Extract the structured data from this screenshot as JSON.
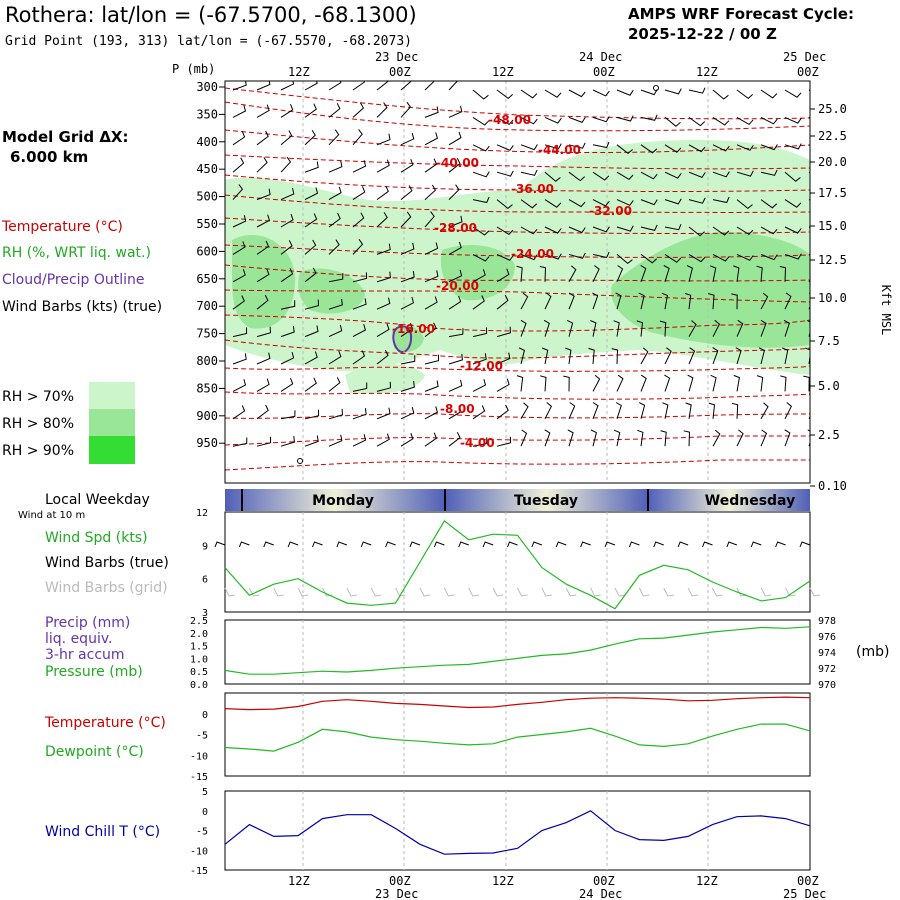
{
  "header": {
    "title": "Rothera:  lat/lon = (-67.5700, -68.1300)",
    "subtitle": "Grid Point (193, 313) lat/lon = (-67.5570, -68.2073)",
    "cycle_line1": "AMPS WRF Forecast Cycle:",
    "cycle_line2": "2025-12-22 / 00  Z"
  },
  "legend": {
    "model_grid_label": "Model Grid ΔX:",
    "model_grid_value": "6.000 km",
    "temperature": "Temperature (°C)",
    "rh": "RH (%, WRT liq. wat.)",
    "cloud": "Cloud/Precip Outline",
    "wind": "Wind Barbs (kts) (true)",
    "rh70": "RH > 70%",
    "rh80": "RH > 80%",
    "rh90": "RH > 90%",
    "weekday": "Local Weekday",
    "wind10": "Wind at 10 m",
    "wind_spd": "Wind Spd (kts)",
    "barbs_true": "Wind Barbs (true)",
    "barbs_grid": "Wind Barbs (grid)",
    "precip": "Precip (mm)",
    "liq": "liq. equiv.",
    "accum": "3-hr accum",
    "pressure": "Pressure (mb)",
    "pressure_unit": "(mb)",
    "temp2": "Temperature (°C)",
    "dewpoint": "Dewpoint (°C)",
    "windchill": "Wind Chill T (°C)"
  },
  "colors": {
    "rh70": "#ccf5cc",
    "rh80": "#99e699",
    "rh90": "#33dd33",
    "temp": "#cc0000",
    "green": "#22bb22",
    "purple": "#6633aa",
    "blue": "#0000aa"
  },
  "time_axis": {
    "top_dates": [
      "23 Dec",
      "24 Dec",
      "25 Dec"
    ],
    "top_hours": [
      "12Z",
      "00Z",
      "12Z",
      "00Z",
      "12Z",
      "00Z"
    ],
    "p_label": "P (mb)",
    "days": [
      "Monday",
      "Tuesday",
      "Wednesday"
    ]
  },
  "chart_data": [
    {
      "type": "contour",
      "name": "cross-section",
      "pressure_levels": [
        "300",
        "350",
        "400",
        "450",
        "500",
        "550",
        "600",
        "650",
        "700",
        "750",
        "800",
        "850",
        "900",
        "950"
      ],
      "height_ticks": [
        "25.0",
        "22.5",
        "20.0",
        "17.5",
        "15.0",
        "12.5",
        "10.0",
        "7.5",
        "5.0",
        "2.5",
        "0.10"
      ],
      "height_label": "Kft MSL",
      "temp_labels": [
        "-48.00",
        "-44.00",
        "-40.00",
        "-36.00",
        "-32.00",
        "-28.00",
        "-24.00",
        "-20.00",
        "-16.00",
        "-12.00",
        "-8.00",
        "-4.00"
      ]
    },
    {
      "type": "line",
      "name": "wind-speed",
      "yticks": [
        "12",
        "9",
        "6",
        "3"
      ],
      "ylim": [
        3,
        12
      ],
      "x_hours": [
        0,
        3,
        6,
        9,
        12,
        15,
        18,
        21,
        24,
        27,
        30,
        33,
        36,
        39,
        42,
        45,
        48,
        51,
        54,
        57,
        60,
        63,
        66,
        69,
        72
      ],
      "values": [
        7,
        4.5,
        5.5,
        6,
        4.8,
        3.8,
        3.6,
        3.8,
        7.5,
        11.2,
        9.5,
        10,
        9.9,
        7,
        5.5,
        4.5,
        3.3,
        6.3,
        7.2,
        6.8,
        5.7,
        4.8,
        4,
        4.3,
        5.8
      ]
    },
    {
      "type": "line",
      "name": "pressure",
      "yticks_left": [
        "2.5",
        "2.0",
        "1.5",
        "1.0",
        "0.5",
        "0.0"
      ],
      "yticks_right": [
        "978",
        "976",
        "974",
        "972",
        "970"
      ],
      "ylim": [
        970,
        978.5
      ],
      "values": [
        971.8,
        971.3,
        971.3,
        971.5,
        971.7,
        971.6,
        971.8,
        972.1,
        972.3,
        972.5,
        972.6,
        973,
        973.4,
        973.8,
        974,
        974.5,
        975.3,
        976,
        976.1,
        976.5,
        976.9,
        977.2,
        977.5,
        977.4,
        977.6
      ]
    },
    {
      "type": "line",
      "name": "temperature-dewpoint",
      "yticks": [
        "0",
        "-5",
        "-10",
        "-15"
      ],
      "ylim": [
        -15,
        1
      ],
      "series": [
        {
          "name": "Temperature",
          "values": [
            -2,
            -2.2,
            -2.1,
            -1.6,
            -0.6,
            -0.3,
            -0.6,
            -1,
            -1.2,
            -1.5,
            -1.8,
            -1.7,
            -1.2,
            -0.8,
            -0.3,
            0,
            0.1,
            0,
            -0.2,
            -0.5,
            -0.4,
            -0.1,
            0.1,
            0.2,
            0.1
          ]
        },
        {
          "name": "Dewpoint",
          "values": [
            -9.5,
            -9.8,
            -10.2,
            -8.5,
            -6,
            -6.5,
            -7.5,
            -8,
            -8.3,
            -8.7,
            -9,
            -8.8,
            -7.5,
            -7,
            -6.5,
            -5.8,
            -7.3,
            -9,
            -9.3,
            -8.8,
            -7.3,
            -6,
            -5,
            -5,
            -6.3
          ]
        }
      ]
    },
    {
      "type": "line",
      "name": "wind-chill",
      "yticks": [
        "5",
        "0",
        "-5",
        "-10",
        "-15"
      ],
      "ylim": [
        -15,
        5
      ],
      "values": [
        -8.5,
        -3.5,
        -6.5,
        -6.3,
        -2,
        -1,
        -1,
        -4.5,
        -8.5,
        -11,
        -10.8,
        -10.7,
        -9.5,
        -5,
        -3,
        0,
        -5,
        -7.3,
        -7.5,
        -6.5,
        -3.5,
        -1.5,
        -1.3,
        -2,
        -3.8
      ]
    }
  ],
  "bottom_axis": {
    "hours": [
      "12Z",
      "00Z",
      "12Z",
      "00Z",
      "12Z",
      "00Z"
    ],
    "dates": [
      "23 Dec",
      "24 Dec",
      "25 Dec"
    ]
  }
}
